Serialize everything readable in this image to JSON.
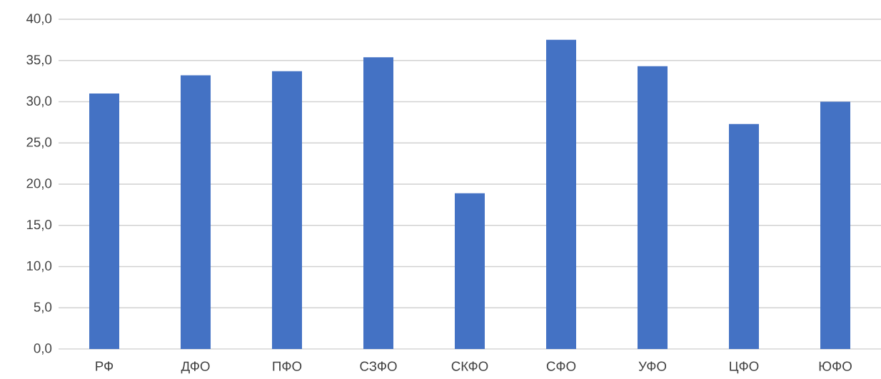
{
  "chart_data": {
    "type": "bar",
    "categories": [
      "РФ",
      "ДФО",
      "ПФО",
      "СЗФО",
      "СКФО",
      "СФО",
      "УФО",
      "ЦФО",
      "ЮФО"
    ],
    "values": [
      31.0,
      33.2,
      33.7,
      35.4,
      18.9,
      37.5,
      34.3,
      27.3,
      30.0
    ],
    "color": "#4472c4",
    "ylim": [
      0,
      40
    ],
    "yticks": [
      {
        "value": 0,
        "label": "0,0"
      },
      {
        "value": 5,
        "label": "5,0"
      },
      {
        "value": 10,
        "label": "10,0"
      },
      {
        "value": 15,
        "label": "15,0"
      },
      {
        "value": 20,
        "label": "20,0"
      },
      {
        "value": 25,
        "label": "25,0"
      },
      {
        "value": 30,
        "label": "30,0"
      },
      {
        "value": 35,
        "label": "35,0"
      },
      {
        "value": 40,
        "label": "40,0"
      }
    ],
    "grid": "y"
  }
}
